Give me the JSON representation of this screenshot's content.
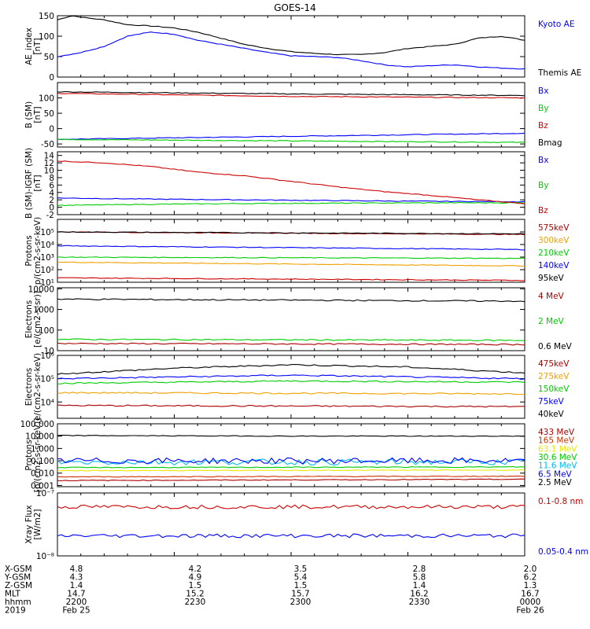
{
  "title": "GOES-14",
  "colors": {
    "black": "#000000",
    "blue": "#0000ff",
    "green": "#00cc00",
    "red": "#cc0000",
    "orange": "#f0a000",
    "yellow": "#e8e800",
    "cyan": "#00bbee",
    "magenta": "#cc00cc",
    "darkred": "#aa0000",
    "brown": "#cc3300"
  },
  "footer": {
    "rows": [
      {
        "label": "X-GSM",
        "values": [
          "4.8",
          "4.2",
          "3.5",
          "2.8",
          "2.0"
        ]
      },
      {
        "label": "Y-GSM",
        "values": [
          "4.3",
          "4.9",
          "5.4",
          "5.8",
          "6.2"
        ]
      },
      {
        "label": "Z-GSM",
        "values": [
          "1.4",
          "1.5",
          "1.5",
          "1.4",
          "1.3"
        ]
      },
      {
        "label": "MLT",
        "values": [
          "14.7",
          "15.2",
          "15.7",
          "16.2",
          "16.7"
        ]
      },
      {
        "label": "hhmm",
        "values": [
          "2200",
          "2230",
          "2300",
          "2330",
          "0000"
        ]
      },
      {
        "label": "2019",
        "values": [
          "Feb 25",
          "",
          "",
          "",
          "Feb 26"
        ]
      }
    ]
  },
  "chart_data": [
    {
      "type": "line",
      "ylabel": "AE_index\n[nT]",
      "yscale": "linear",
      "ylim": [
        0,
        150
      ],
      "ticks": [
        {
          "v": 0,
          "t": "0"
        },
        {
          "v": 50,
          "t": "50"
        },
        {
          "v": 100,
          "t": "100"
        },
        {
          "v": 150,
          "t": "150"
        }
      ],
      "series": [
        {
          "name": "Kyoto AE",
          "color": "blue",
          "labelOnly": true
        },
        {
          "name": "Themis AE",
          "color": "black",
          "x": [
            0,
            0.03,
            0.06,
            0.1,
            0.15,
            0.2,
            0.25,
            0.3,
            0.35,
            0.4,
            0.45,
            0.5,
            0.55,
            0.6,
            0.65,
            0.7,
            0.75,
            0.8,
            0.85,
            0.9,
            0.95,
            1.0
          ],
          "y": [
            140,
            150,
            145,
            140,
            128,
            125,
            120,
            110,
            95,
            80,
            70,
            62,
            58,
            55,
            55,
            60,
            70,
            75,
            80,
            95,
            100,
            90
          ]
        },
        {
          "name": "",
          "color": "blue",
          "x": [
            0,
            0.05,
            0.1,
            0.15,
            0.2,
            0.25,
            0.3,
            0.35,
            0.4,
            0.45,
            0.5,
            0.55,
            0.6,
            0.65,
            0.7,
            0.75,
            0.8,
            0.85,
            0.9,
            0.95,
            1.0
          ],
          "y": [
            50,
            60,
            75,
            100,
            110,
            105,
            90,
            80,
            70,
            60,
            52,
            50,
            48,
            40,
            30,
            25,
            28,
            30,
            25,
            22,
            20
          ]
        }
      ]
    },
    {
      "type": "line",
      "ylabel": "B (SM)\n[nT]",
      "yscale": "linear",
      "ylim": [
        -60,
        150
      ],
      "ticks": [
        {
          "v": -50,
          "t": "-50"
        },
        {
          "v": 0,
          "t": "0"
        },
        {
          "v": 50,
          "t": "50"
        },
        {
          "v": 100,
          "t": "100"
        }
      ],
      "series": [
        {
          "name": "Bx",
          "color": "blue",
          "x": [
            0,
            1
          ],
          "y": [
            -35,
            -15
          ]
        },
        {
          "name": "By",
          "color": "green",
          "x": [
            0,
            1
          ],
          "y": [
            -35,
            -45
          ]
        },
        {
          "name": "Bz",
          "color": "red",
          "x": [
            0,
            0.5,
            1
          ],
          "y": [
            115,
            105,
            100
          ]
        },
        {
          "name": "Bmag",
          "color": "black",
          "x": [
            0,
            0.5,
            1
          ],
          "y": [
            120,
            113,
            108
          ]
        }
      ]
    },
    {
      "type": "line",
      "ylabel": "B (SM)-IGRF (SM)\n[nT]",
      "yscale": "linear",
      "ylim": [
        -2,
        15
      ],
      "ticks": [
        {
          "v": -2,
          "t": "-2"
        },
        {
          "v": 0,
          "t": "0"
        },
        {
          "v": 2,
          "t": "2"
        },
        {
          "v": 4,
          "t": "4"
        },
        {
          "v": 6,
          "t": "6"
        },
        {
          "v": 8,
          "t": "8"
        },
        {
          "v": 10,
          "t": "10"
        },
        {
          "v": 12,
          "t": "12"
        },
        {
          "v": 14,
          "t": "14"
        }
      ],
      "series": [
        {
          "name": "Bx",
          "color": "blue",
          "x": [
            0,
            0.2,
            0.4,
            0.6,
            0.8,
            1
          ],
          "y": [
            2.5,
            2.2,
            2.0,
            1.8,
            1.6,
            1.5
          ]
        },
        {
          "name": "By",
          "color": "green",
          "x": [
            0,
            0.2,
            0.4,
            0.6,
            0.8,
            1
          ],
          "y": [
            0.5,
            0.8,
            1.0,
            1.1,
            1.2,
            1.2
          ]
        },
        {
          "name": "Bz",
          "color": "red",
          "x": [
            0,
            0.1,
            0.2,
            0.3,
            0.4,
            0.5,
            0.6,
            0.7,
            0.8,
            0.9,
            1
          ],
          "y": [
            12.5,
            12,
            11,
            9.5,
            8.5,
            7,
            5.5,
            4.2,
            3.2,
            2,
            1
          ]
        }
      ]
    },
    {
      "type": "line",
      "ylabel": "Protons\np/(cm2-s-sr-keV)",
      "yscale": "log",
      "ylim": [
        1,
        6
      ],
      "ticks": [
        {
          "v": 1,
          "t": "10¹"
        },
        {
          "v": 2,
          "t": "10²"
        },
        {
          "v": 3,
          "t": "10³"
        },
        {
          "v": 4,
          "t": "10⁴"
        },
        {
          "v": 5,
          "t": "10⁵"
        }
      ],
      "series": [
        {
          "name": "575keV",
          "color": "darkred",
          "x": [
            0,
            1
          ],
          "y": [
            5.0,
            4.8
          ]
        },
        {
          "name": "300keV",
          "color": "orange",
          "x": [
            0,
            1
          ],
          "y": [
            2.6,
            2.3
          ]
        },
        {
          "name": "210keV",
          "color": "green",
          "x": [
            0,
            1
          ],
          "y": [
            3.0,
            2.9
          ]
        },
        {
          "name": "140keV",
          "color": "blue",
          "x": [
            0,
            0.5,
            1
          ],
          "y": [
            3.9,
            3.75,
            3.6
          ]
        },
        {
          "name": "95keV",
          "color": "black",
          "x": [
            0,
            1
          ],
          "y": [
            5.0,
            4.85
          ]
        },
        {
          "name": "",
          "color": "red",
          "x": [
            0,
            1
          ],
          "y": [
            1.35,
            1.15
          ]
        }
      ]
    },
    {
      "type": "line",
      "ylabel": "Electrons\n[e/(cm2-s-sr)]",
      "yscale": "log",
      "ylim": [
        1,
        4.05
      ],
      "ticks": [
        {
          "v": 1,
          "t": "10"
        },
        {
          "v": 2,
          "t": "100"
        },
        {
          "v": 3,
          "t": "1000"
        },
        {
          "v": 4,
          "t": "10000"
        }
      ],
      "series": [
        {
          "name": "4 MeV",
          "color": "darkred",
          "x": [
            0,
            1
          ],
          "y": [
            1.35,
            1.3
          ]
        },
        {
          "name": "2 MeV",
          "color": "green",
          "x": [
            0,
            1
          ],
          "y": [
            1.55,
            1.5
          ]
        },
        {
          "name": "0.6 MeV",
          "color": "black",
          "x": [
            0,
            0.5,
            1
          ],
          "y": [
            3.5,
            3.45,
            3.4
          ]
        }
      ]
    },
    {
      "type": "line",
      "ylabel": "Electrons\ne/(cm2-s-sr-keV)",
      "yscale": "log",
      "ylim": [
        3.3,
        6
      ],
      "ticks": [
        {
          "v": 4,
          "t": "10⁴"
        },
        {
          "v": 5,
          "t": "10⁵"
        },
        {
          "v": 6,
          "t": "10⁶"
        }
      ],
      "series": [
        {
          "name": "475keV",
          "color": "darkred",
          "x": [
            0,
            1
          ],
          "y": [
            3.85,
            3.8
          ]
        },
        {
          "name": "275keV",
          "color": "orange",
          "x": [
            0,
            1
          ],
          "y": [
            4.4,
            4.35
          ]
        },
        {
          "name": "150keV",
          "color": "green",
          "x": [
            0,
            0.5,
            1
          ],
          "y": [
            4.8,
            4.9,
            4.85
          ]
        },
        {
          "name": "75keV",
          "color": "blue",
          "x": [
            0,
            0.5,
            1
          ],
          "y": [
            5.0,
            5.15,
            5.0
          ]
        },
        {
          "name": "40keV",
          "color": "black",
          "x": [
            0,
            0.25,
            0.5,
            0.75,
            1
          ],
          "y": [
            5.2,
            5.45,
            5.6,
            5.5,
            5.25
          ]
        }
      ]
    },
    {
      "type": "line",
      "ylabel": "Protons\n[p/(cm2-s-sr-keV)]",
      "yscale": "log",
      "ylim": [
        -3.1,
        2
      ],
      "ticks": [
        {
          "v": -3,
          "t": "0.001"
        },
        {
          "v": -2,
          "t": "0.010"
        },
        {
          "v": -1,
          "t": "0.100"
        },
        {
          "v": 0,
          "t": "1.000"
        },
        {
          "v": 1,
          "t": "10.000"
        },
        {
          "v": 2,
          "t": "100.000"
        }
      ],
      "series": [
        {
          "name": "433 MeV",
          "color": "darkred",
          "x": [
            0,
            1
          ],
          "y": [
            -2.6,
            -2.5
          ]
        },
        {
          "name": "165 MeV",
          "color": "brown",
          "x": [
            0,
            1
          ],
          "y": [
            -2.3,
            -2.25
          ]
        },
        {
          "name": "63.1 MeV",
          "color": "yellow",
          "x": [
            0,
            1
          ],
          "y": [
            -1.8,
            -1.75
          ]
        },
        {
          "name": "30.6 MeV",
          "color": "green",
          "x": [
            0,
            1
          ],
          "y": [
            -1.55,
            -1.5
          ]
        },
        {
          "name": "11.6 MeV",
          "color": "cyan",
          "x": [
            0,
            1
          ],
          "y": [
            -1.1,
            -1.1
          ]
        },
        {
          "name": "6.5 MeV",
          "color": "blue",
          "x": [
            0,
            1
          ],
          "y": [
            -1.0,
            -1.0
          ]
        },
        {
          "name": "2.5 MeV",
          "color": "black",
          "x": [
            0,
            0.5,
            1
          ],
          "y": [
            1.05,
            1.0,
            1.0
          ]
        }
      ]
    },
    {
      "type": "line",
      "ylabel": "Xray Flux\n[W/m2]",
      "yscale": "log",
      "ylim": [
        -8,
        -7
      ],
      "ticks": [
        {
          "v": -8,
          "t": "10⁻⁸"
        },
        {
          "v": -7,
          "t": "10⁻⁷"
        }
      ],
      "series": [
        {
          "name": "0.1-0.8 nm",
          "color": "red",
          "x": [
            0,
            1
          ],
          "y": [
            -7.22,
            -7.22
          ]
        },
        {
          "name": "0.05-0.4 nm",
          "color": "blue",
          "x": [
            0,
            1
          ],
          "y": [
            -7.68,
            -7.68
          ]
        }
      ]
    }
  ]
}
